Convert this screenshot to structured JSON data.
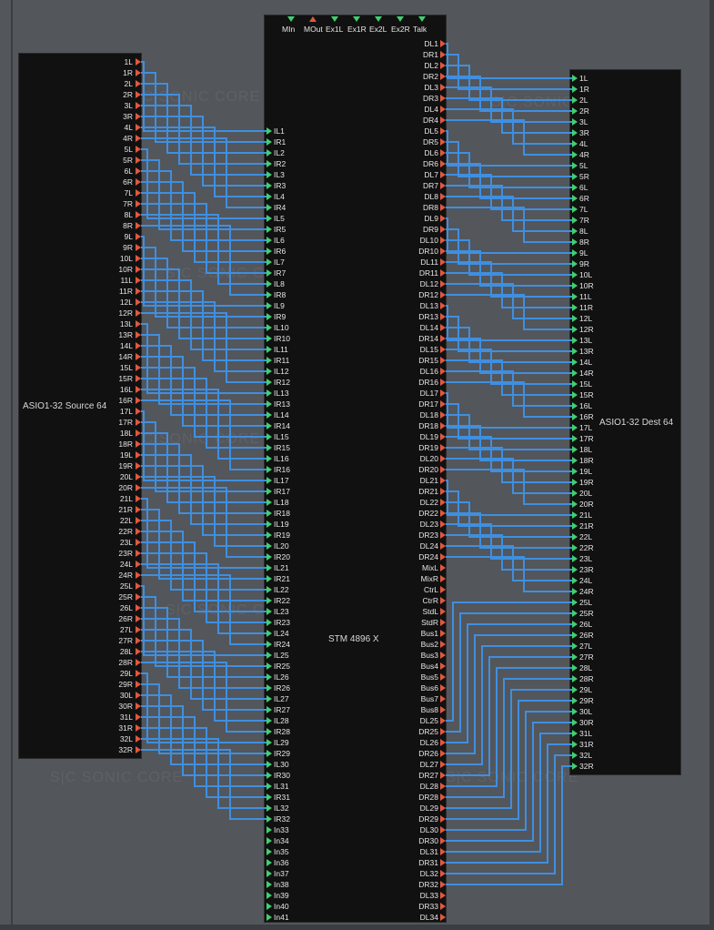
{
  "modules": {
    "source": {
      "title": "ASIO1-32 Source 64"
    },
    "stm": {
      "title": "STM 4896 X",
      "top_ports": [
        "MIn",
        "MOut",
        "Ex1L",
        "Ex1R",
        "Ex2L",
        "Ex2R",
        "Talk"
      ]
    },
    "dest": {
      "title": "ASIO1-32 Dest 64"
    }
  },
  "watermark": {
    "text": "S|C  SONIC CORE"
  },
  "source_outputs": [
    "1L",
    "1R",
    "2L",
    "2R",
    "3L",
    "3R",
    "4L",
    "4R",
    "5L",
    "5R",
    "6L",
    "6R",
    "7L",
    "7R",
    "8L",
    "8R",
    "9L",
    "9R",
    "10L",
    "10R",
    "11L",
    "11R",
    "12L",
    "12R",
    "13L",
    "13R",
    "14L",
    "14R",
    "15L",
    "15R",
    "16L",
    "16R",
    "17L",
    "17R",
    "18L",
    "18R",
    "19L",
    "19R",
    "20L",
    "20R",
    "21L",
    "21R",
    "22L",
    "22R",
    "23L",
    "23R",
    "24L",
    "24R",
    "25L",
    "25R",
    "26L",
    "26R",
    "27L",
    "27R",
    "28L",
    "28R",
    "29L",
    "29R",
    "30L",
    "30R",
    "31L",
    "31R",
    "32L",
    "32R"
  ],
  "stm_inputs": [
    "IL1",
    "IR1",
    "IL2",
    "IR2",
    "IL3",
    "IR3",
    "IL4",
    "IR4",
    "IL5",
    "IR5",
    "IL6",
    "IR6",
    "IL7",
    "IR7",
    "IL8",
    "IR8",
    "IL9",
    "IR9",
    "IL10",
    "IR10",
    "IL11",
    "IR11",
    "IL12",
    "IR12",
    "IL13",
    "IR13",
    "IL14",
    "IR14",
    "IL15",
    "IR15",
    "IL16",
    "IR16",
    "IL17",
    "IR17",
    "IL18",
    "IR18",
    "IL19",
    "IR19",
    "IL20",
    "IR20",
    "IL21",
    "IR21",
    "IL22",
    "IR22",
    "IL23",
    "IR23",
    "IL24",
    "IR24",
    "IL25",
    "IR25",
    "IL26",
    "IR26",
    "IL27",
    "IR27",
    "IL28",
    "IR28",
    "IL29",
    "IR29",
    "IL30",
    "IR30",
    "IL31",
    "IR31",
    "IL32",
    "IR32",
    "In33",
    "In34",
    "In35",
    "In36",
    "In37",
    "In38",
    "In39",
    "In40",
    "In41"
  ],
  "stm_outputs": [
    "DL1",
    "DR1",
    "DL2",
    "DR2",
    "DL3",
    "DR3",
    "DL4",
    "DR4",
    "DL5",
    "DR5",
    "DL6",
    "DR6",
    "DL7",
    "DR7",
    "DL8",
    "DR8",
    "DL9",
    "DR9",
    "DL10",
    "DR10",
    "DL11",
    "DR11",
    "DL12",
    "DR12",
    "DL13",
    "DR13",
    "DL14",
    "DR14",
    "DL15",
    "DR15",
    "DL16",
    "DR16",
    "DL17",
    "DR17",
    "DL18",
    "DR18",
    "DL19",
    "DR19",
    "DL20",
    "DR20",
    "DL21",
    "DR21",
    "DL22",
    "DR22",
    "DL23",
    "DR23",
    "DL24",
    "DR24",
    "MixL",
    "MixR",
    "CtrL",
    "CtrR",
    "StdL",
    "StdR",
    "Bus1",
    "Bus2",
    "Bus3",
    "Bus4",
    "Bus5",
    "Bus6",
    "Bus7",
    "Bus8",
    "DL25",
    "DR25",
    "DL26",
    "DR26",
    "DL27",
    "DR27",
    "DL28",
    "DR28",
    "DL29",
    "DR29",
    "DL30",
    "DR30",
    "DL31",
    "DR31",
    "DL32",
    "DR32",
    "DL33",
    "DR33",
    "DL34"
  ],
  "dest_inputs": [
    "1L",
    "1R",
    "2L",
    "2R",
    "3L",
    "3R",
    "4L",
    "4R",
    "5L",
    "5R",
    "6L",
    "6R",
    "7L",
    "7R",
    "8L",
    "8R",
    "9L",
    "9R",
    "10L",
    "10R",
    "11L",
    "11R",
    "12L",
    "12R",
    "13L",
    "13R",
    "14L",
    "14R",
    "15L",
    "15R",
    "16L",
    "16R",
    "17L",
    "17R",
    "18L",
    "18R",
    "19L",
    "19R",
    "20L",
    "20R",
    "21L",
    "21R",
    "22L",
    "22R",
    "23L",
    "23R",
    "24L",
    "24R",
    "25L",
    "25R",
    "26L",
    "26R",
    "27L",
    "27R",
    "28L",
    "28R",
    "29L",
    "29R",
    "30L",
    "30R",
    "31L",
    "31R",
    "32L",
    "32R"
  ],
  "colors": {
    "background": "#53565b",
    "module": "#111111",
    "wire": "#3f8fe0",
    "output_pin": "#e0583f",
    "input_pin": "#3fd16e",
    "label": "#e6e6e6"
  }
}
